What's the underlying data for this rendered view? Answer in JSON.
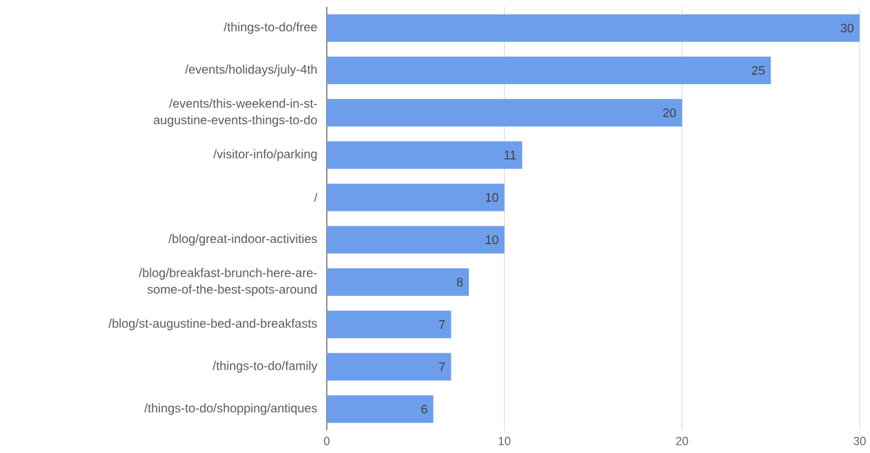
{
  "chart_data": {
    "type": "bar",
    "orientation": "horizontal",
    "categories": [
      "/things-to-do/free",
      "/events/holidays/july-4th",
      "/events/this-weekend-in-st-augustine-events-things-to-do",
      "/visitor-info/parking",
      "/",
      "/blog/great-indoor-activities",
      "/blog/breakfast-brunch-here-are-some-of-the-best-spots-around",
      "/blog/st-augustine-bed-and-breakfasts",
      "/things-to-do/family",
      "/things-to-do/shopping/antiques"
    ],
    "values": [
      30,
      25,
      20,
      11,
      10,
      10,
      8,
      7,
      7,
      6
    ],
    "color": "#6d9eeb",
    "xlim": [
      0,
      30
    ],
    "xticks": [
      0,
      10,
      20,
      30
    ],
    "grid": "x",
    "data_labels": true
  }
}
